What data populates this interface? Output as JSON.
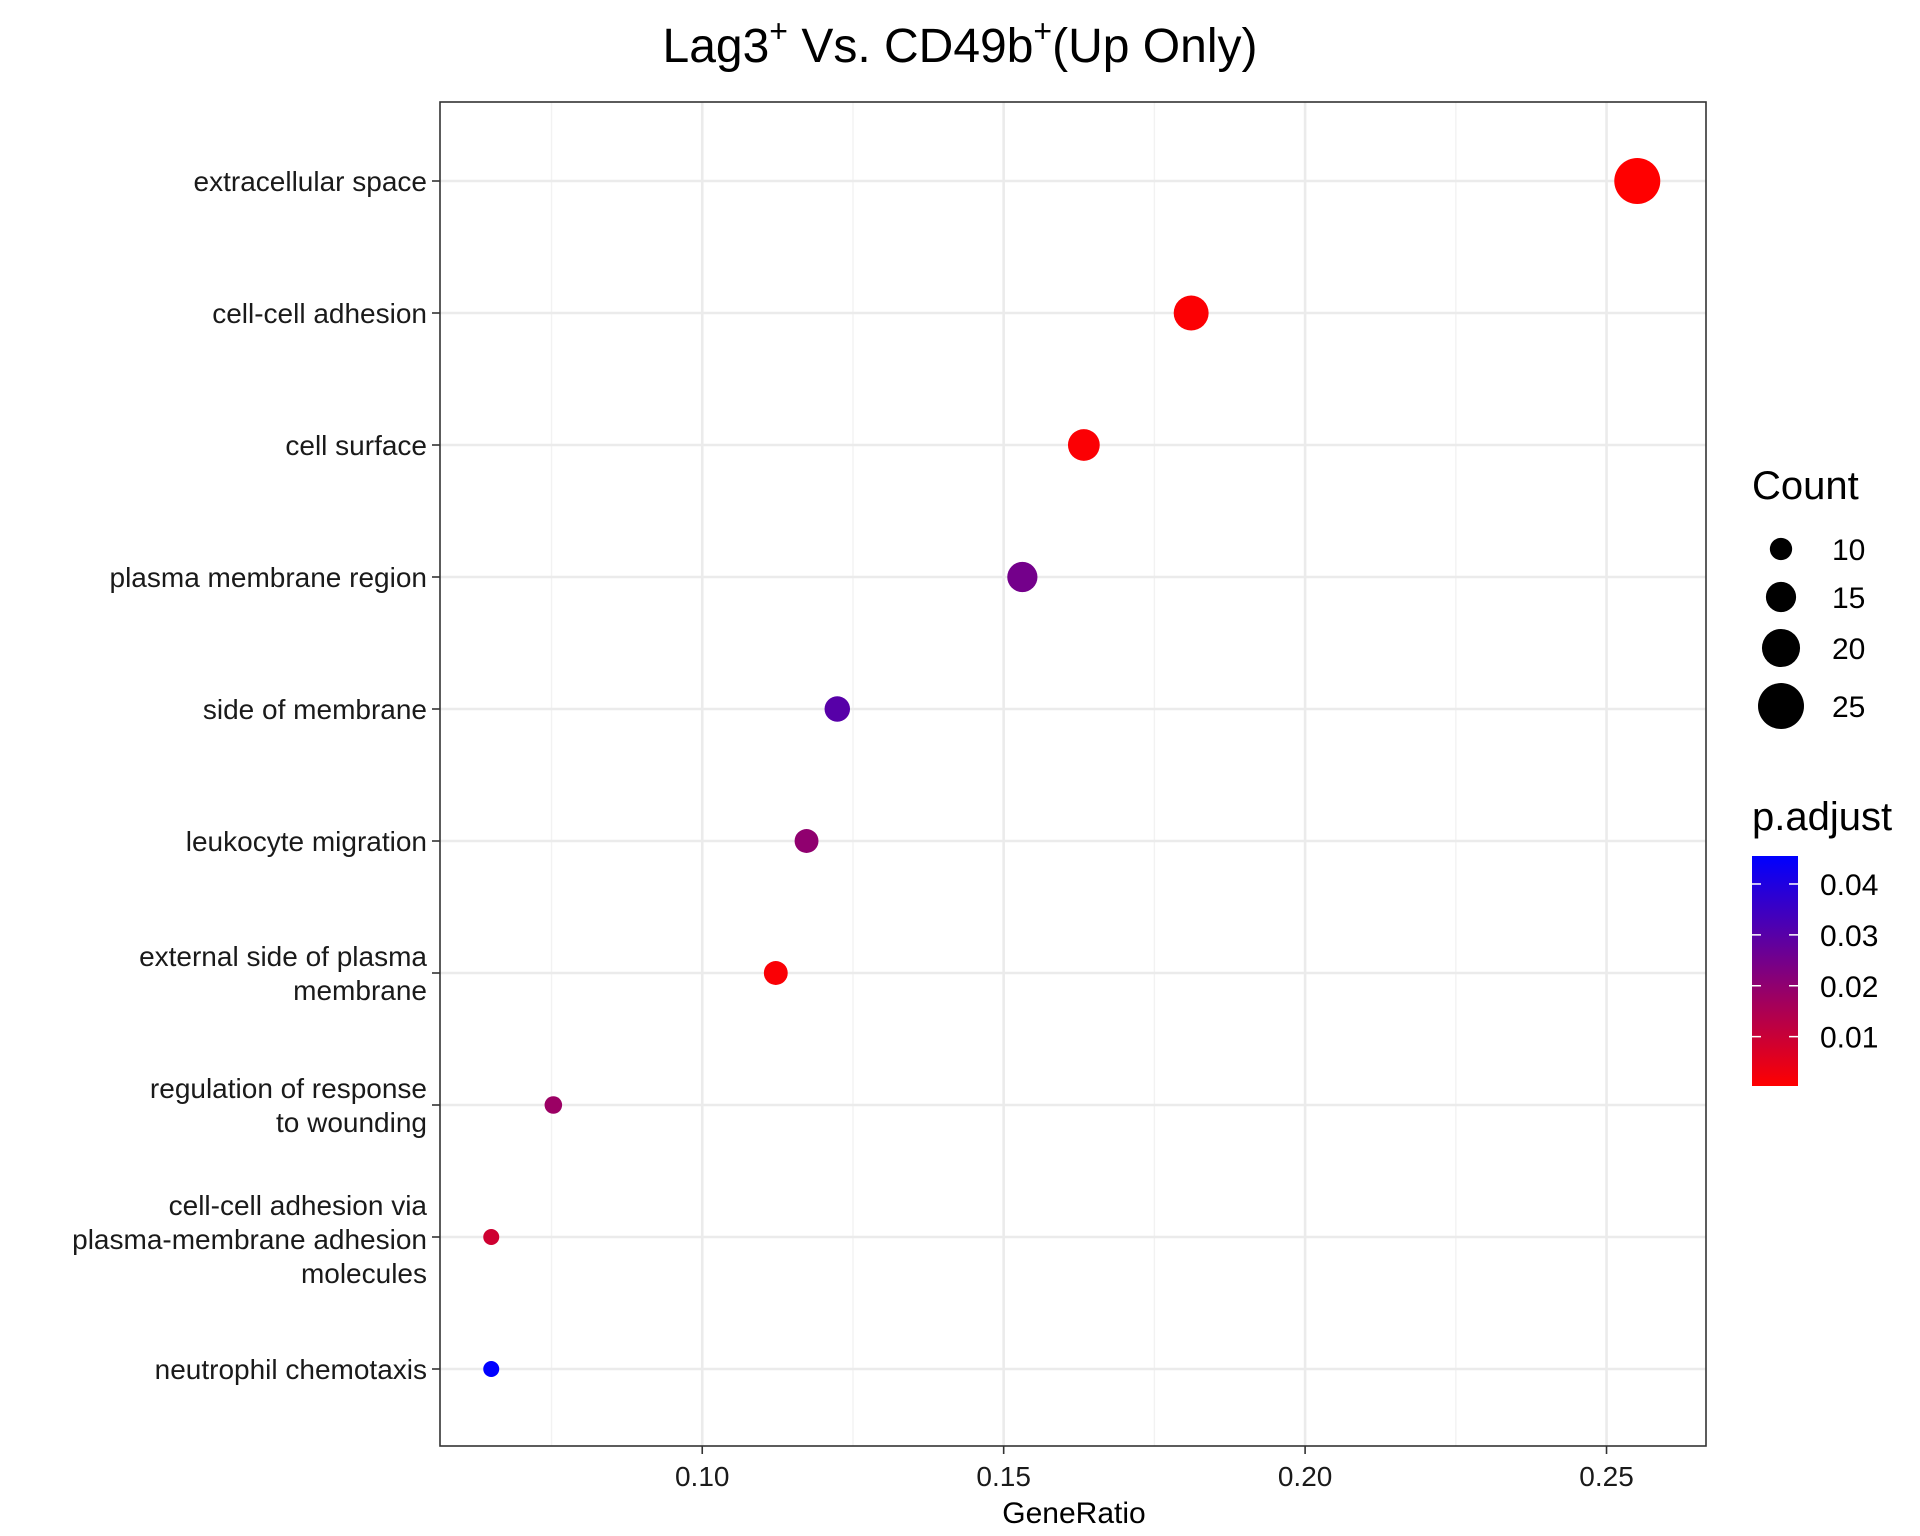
{
  "chart_data": {
    "type": "scatter",
    "title": {
      "part1": "Lag3",
      "sup1": "+",
      "part2": " Vs. CD49b",
      "sup2": "+",
      "part3": "(Up Only)"
    },
    "xlabel": "GeneRatio",
    "ylabel": "",
    "xlim": [
      0.0565,
      0.2665
    ],
    "xticks": [
      {
        "value": 0.1,
        "label": "0.10"
      },
      {
        "value": 0.15,
        "label": "0.15"
      },
      {
        "value": 0.2,
        "label": "0.20"
      },
      {
        "value": 0.25,
        "label": "0.25"
      }
    ],
    "grid": true,
    "points": [
      {
        "term": [
          "extracellular space"
        ],
        "gene_ratio": 0.2551,
        "count": 25,
        "p_adjust": 0.0003
      },
      {
        "term": [
          "cell-cell adhesion"
        ],
        "gene_ratio": 0.1811,
        "count": 18,
        "p_adjust": 0.0008
      },
      {
        "term": [
          "cell surface"
        ],
        "gene_ratio": 0.1633,
        "count": 16,
        "p_adjust": 0.001
      },
      {
        "term": [
          "plasma membrane region"
        ],
        "gene_ratio": 0.1531,
        "count": 15,
        "p_adjust": 0.025
      },
      {
        "term": [
          "side of membrane"
        ],
        "gene_ratio": 0.1224,
        "count": 12,
        "p_adjust": 0.03
      },
      {
        "term": [
          "leukocyte migration"
        ],
        "gene_ratio": 0.1173,
        "count": 11,
        "p_adjust": 0.02
      },
      {
        "term": [
          "external side of plasma",
          "membrane"
        ],
        "gene_ratio": 0.1122,
        "count": 11,
        "p_adjust": 0.0012
      },
      {
        "term": [
          "regulation of response",
          "to wounding"
        ],
        "gene_ratio": 0.0753,
        "count": 7,
        "p_adjust": 0.018
      },
      {
        "term": [
          "cell-cell adhesion via",
          "plasma-membrane adhesion",
          "molecules"
        ],
        "gene_ratio": 0.065,
        "count": 6,
        "p_adjust": 0.009
      },
      {
        "term": [
          "neutrophil chemotaxis"
        ],
        "gene_ratio": 0.065,
        "count": 6,
        "p_adjust": 0.0455
      }
    ],
    "size_legend": {
      "title": "Count",
      "entries": [
        {
          "value": 10,
          "label": "10"
        },
        {
          "value": 15,
          "label": "15"
        },
        {
          "value": 20,
          "label": "20"
        },
        {
          "value": 25,
          "label": "25"
        }
      ]
    },
    "color_legend": {
      "title": "p.adjust",
      "range": [
        0.0003,
        0.0455
      ],
      "low_color": "#ff0000",
      "high_color": "#0000ff",
      "ticks": [
        {
          "value": 0.04,
          "label": "0.04"
        },
        {
          "value": 0.03,
          "label": "0.03"
        },
        {
          "value": 0.02,
          "label": "0.02"
        },
        {
          "value": 0.01,
          "label": "0.01"
        }
      ]
    },
    "colors": {
      "panel_border": "#333333",
      "grid_major": "#ebebeb",
      "grid_minor": "#f2f2f2",
      "background": "#ffffff"
    }
  }
}
